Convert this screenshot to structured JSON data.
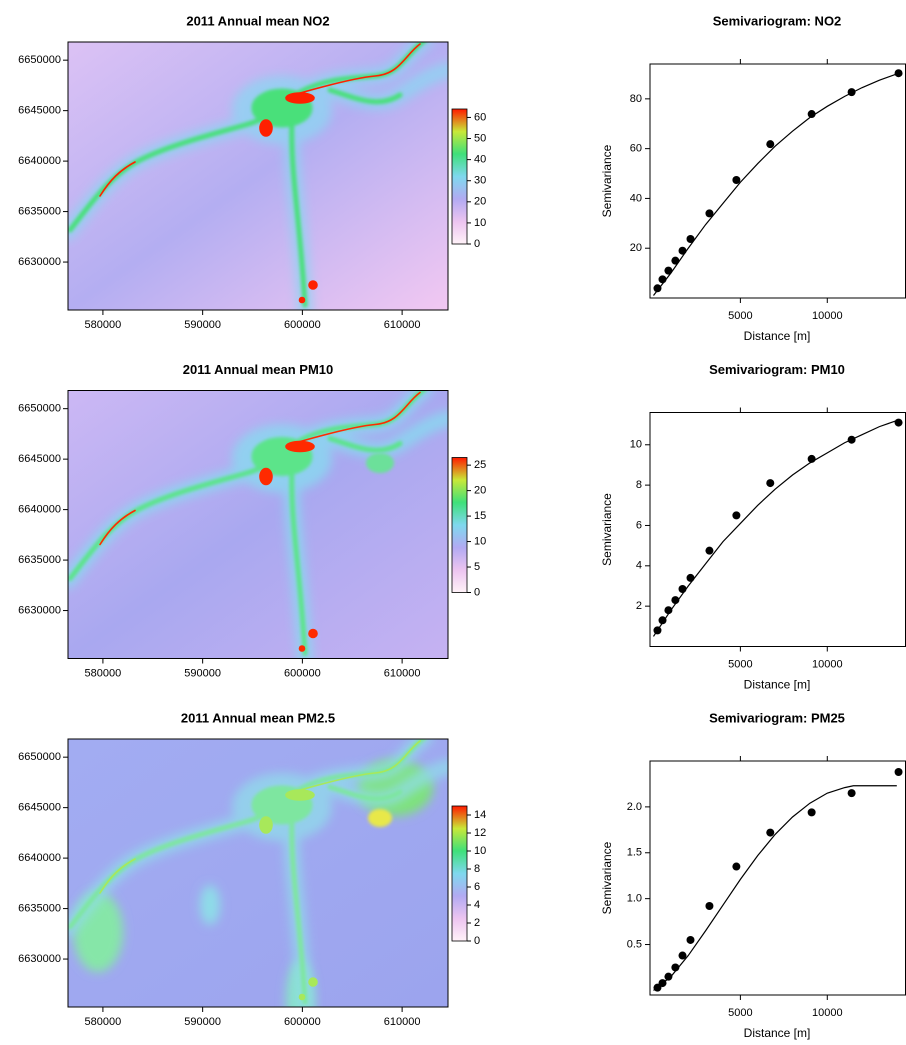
{
  "chart_data": [
    {
      "type": "raster",
      "title": "2011 Annual mean NO2",
      "xlim": [
        576500,
        614600
      ],
      "ylim": [
        6625250,
        6651800
      ],
      "xticks": [
        580000,
        590000,
        600000,
        610000
      ],
      "yticks": [
        6630000,
        6635000,
        6640000,
        6645000,
        6650000
      ],
      "colorbar": {
        "lim": [
          0,
          64
        ],
        "ticks": [
          0,
          10,
          20,
          30,
          40,
          50,
          60
        ],
        "colors": [
          "#fff2f8",
          "#ecc4f0",
          "#b2aaf2",
          "#7fd8ee",
          "#3fe07a",
          "#c8e838",
          "#ff1a00"
        ]
      }
    },
    {
      "type": "scatter",
      "title": "Semivariogram: NO2",
      "x_label": "Distance [m]",
      "y_label": "Semivariance",
      "xlim": [
        -200,
        14500
      ],
      "ylim": [
        0,
        94
      ],
      "xticks": [
        5000,
        10000
      ],
      "yticks": [
        20,
        40,
        60,
        80
      ],
      "color": "#000000",
      "x": [
        230,
        520,
        860,
        1260,
        1670,
        2130,
        3220,
        4770,
        6720,
        9100,
        11400,
        14100
      ],
      "values": [
        3.9,
        7.5,
        11,
        15,
        19,
        23.7,
        34,
        47.4,
        61.8,
        73.9,
        82.7,
        90.3
      ],
      "model": {
        "x": [
          0,
          1000,
          2000,
          3000,
          4000,
          5000,
          6000,
          7000,
          8000,
          9000,
          10000,
          11000,
          12000,
          13000,
          14000
        ],
        "values": [
          1,
          10,
          20,
          29.5,
          38,
          46.5,
          54,
          61,
          67,
          72.5,
          77,
          81,
          84.5,
          87.5,
          90
        ]
      }
    },
    {
      "type": "raster",
      "title": "2011 Annual mean PM10",
      "xlim": [
        576500,
        614600
      ],
      "ylim": [
        6625250,
        6651800
      ],
      "xticks": [
        580000,
        590000,
        600000,
        610000
      ],
      "yticks": [
        6630000,
        6635000,
        6640000,
        6645000,
        6650000
      ],
      "colorbar": {
        "lim": [
          0,
          26.5
        ],
        "ticks": [
          0,
          5,
          10,
          15,
          20,
          25
        ],
        "colors": [
          "#fff2f8",
          "#ecc4f0",
          "#b2aaf2",
          "#7fd8ee",
          "#3fe07a",
          "#c8e838",
          "#ff1a00"
        ]
      }
    },
    {
      "type": "scatter",
      "title": "Semivariogram: PM10",
      "x_label": "Distance [m]",
      "y_label": "Semivariance",
      "xlim": [
        -200,
        14500
      ],
      "ylim": [
        0,
        11.6
      ],
      "xticks": [
        5000,
        10000
      ],
      "yticks": [
        2,
        4,
        6,
        8,
        10
      ],
      "color": "#000000",
      "x": [
        230,
        520,
        860,
        1260,
        1670,
        2130,
        3220,
        4770,
        6720,
        9100,
        11400,
        14100
      ],
      "values": [
        0.8,
        1.3,
        1.8,
        2.3,
        2.85,
        3.4,
        4.75,
        6.5,
        8.1,
        9.3,
        10.25,
        11.1
      ],
      "model": {
        "x": [
          0,
          1000,
          2000,
          3000,
          4000,
          5000,
          6000,
          7000,
          8000,
          9000,
          10000,
          11000,
          12000,
          13000,
          14000
        ],
        "values": [
          0.5,
          1.8,
          3,
          4.1,
          5.2,
          6.1,
          7,
          7.8,
          8.5,
          9.1,
          9.6,
          10.1,
          10.5,
          10.9,
          11.2
        ]
      }
    },
    {
      "type": "raster",
      "title": "2011 Annual mean PM2.5",
      "xlim": [
        576500,
        614600
      ],
      "ylim": [
        6625250,
        6651800
      ],
      "xticks": [
        580000,
        590000,
        600000,
        610000
      ],
      "yticks": [
        6630000,
        6635000,
        6640000,
        6645000,
        6650000
      ],
      "colorbar": {
        "lim": [
          0,
          15
        ],
        "ticks": [
          0,
          2,
          4,
          6,
          8,
          10,
          12,
          14
        ],
        "colors": [
          "#fff2f8",
          "#ecc4f0",
          "#b2aaf2",
          "#7fd8ee",
          "#3fe07a",
          "#c8e838",
          "#ff1a00"
        ]
      }
    },
    {
      "type": "scatter",
      "title": "Semivariogram: PM25",
      "x_label": "Distance [m]",
      "y_label": "Semivariance",
      "xlim": [
        -200,
        14500
      ],
      "ylim": [
        -0.05,
        2.5
      ],
      "xticks": [
        5000,
        10000
      ],
      "yticks": [
        0.5,
        {
          "value": 1,
          "label": "1.0"
        },
        1.5,
        {
          "value": 2,
          "label": "2.0"
        }
      ],
      "color": "#000000",
      "x": [
        230,
        520,
        860,
        1260,
        1670,
        2130,
        3220,
        4770,
        6720,
        9100,
        11400,
        14100
      ],
      "values": [
        0.03,
        0.08,
        0.15,
        0.25,
        0.38,
        0.55,
        0.92,
        1.35,
        1.72,
        1.94,
        2.15,
        2.38
      ],
      "model": {
        "x": [
          0,
          1000,
          2000,
          3000,
          4000,
          5000,
          6000,
          7000,
          8000,
          9000,
          10000,
          11000,
          11500,
          14000
        ],
        "values": [
          0,
          0.15,
          0.38,
          0.65,
          0.93,
          1.21,
          1.47,
          1.7,
          1.89,
          2.04,
          2.15,
          2.21,
          2.23,
          2.23
        ]
      }
    }
  ]
}
